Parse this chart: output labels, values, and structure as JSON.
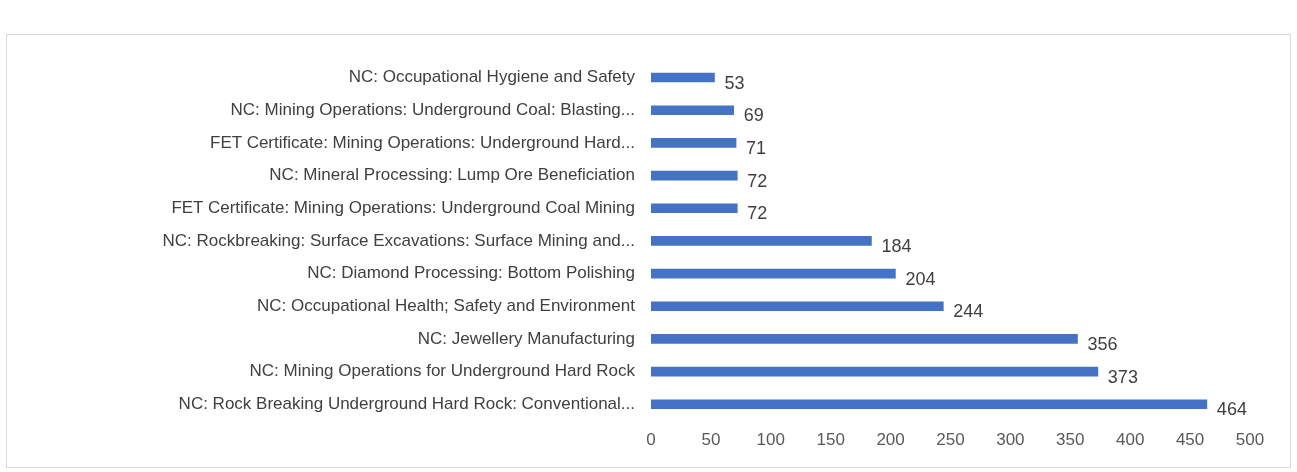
{
  "chart_data": {
    "type": "bar",
    "orientation": "horizontal",
    "categories": [
      "NC: Occupational Hygiene and Safety",
      "NC: Mining Operations: Underground Coal: Blasting...",
      "FET Certificate: Mining Operations: Underground Hard...",
      "NC: Mineral Processing: Lump Ore Beneficiation",
      "FET Certificate: Mining Operations: Underground Coal Mining",
      "NC: Rockbreaking: Surface Excavations: Surface Mining and...",
      "NC: Diamond Processing: Bottom Polishing",
      "NC: Occupational Health; Safety and Environment",
      "NC: Jewellery Manufacturing",
      "NC: Mining Operations for Underground Hard Rock",
      "NC: Rock Breaking Underground Hard Rock: Conventional..."
    ],
    "values": [
      53,
      69,
      71,
      72,
      72,
      184,
      204,
      244,
      356,
      373,
      464
    ],
    "color": "#4472c4",
    "xlim": [
      0,
      500
    ],
    "xticks": [
      0,
      50,
      100,
      150,
      200,
      250,
      300,
      350,
      400,
      450,
      500
    ],
    "grid": false,
    "data_labels": true
  }
}
